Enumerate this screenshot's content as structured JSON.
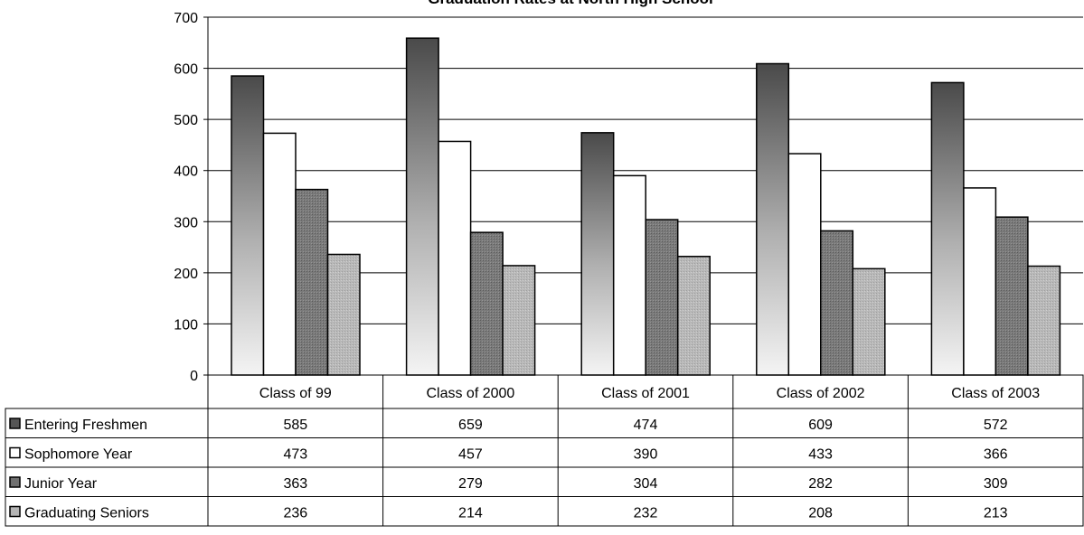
{
  "chart_data": {
    "type": "bar",
    "title": "Graduation Rates at North High School",
    "xlabel": "",
    "ylabel": "",
    "ylim": [
      0,
      700
    ],
    "yticks": [
      0,
      100,
      200,
      300,
      400,
      500,
      600,
      700
    ],
    "grid": true,
    "legend": "table-left",
    "categories": [
      "Class of 99",
      "Class of 2000",
      "Class of 2001",
      "Class of 2002",
      "Class of 2003"
    ],
    "series": [
      {
        "name": "Entering Freshmen",
        "values": [
          585,
          659,
          474,
          609,
          572
        ],
        "color": "#555555",
        "fill": "gradient"
      },
      {
        "name": "Sophomore Year",
        "values": [
          473,
          457,
          390,
          433,
          366
        ],
        "color": "#ffffff",
        "fill": "white"
      },
      {
        "name": "Junior Year",
        "values": [
          363,
          279,
          304,
          282,
          309
        ],
        "color": "#707070",
        "fill": "pattern-dark"
      },
      {
        "name": "Graduating Seniors",
        "values": [
          236,
          214,
          232,
          208,
          213
        ],
        "color": "#b5b5b5",
        "fill": "pattern-light"
      }
    ]
  }
}
